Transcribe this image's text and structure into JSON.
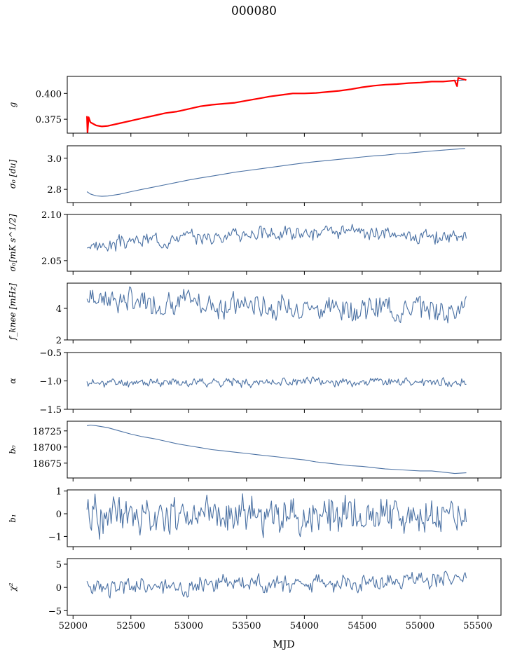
{
  "figure": {
    "title": "000080",
    "xlabel": "MJD"
  },
  "colors": {
    "series": "#4c72a4",
    "fit": "#ff0000",
    "axis": "#000000",
    "background": "#ffffff"
  },
  "chart_data": [
    {
      "type": "line",
      "ylabel": "g",
      "xlim": [
        51950,
        55700
      ],
      "ylim": [
        0.3615,
        0.4165
      ],
      "yticks": [
        0.375,
        0.4
      ],
      "ytick_labels": [
        "0.375",
        "0.400"
      ],
      "series": [
        {
          "x": [
            52120,
            52150,
            52200,
            52250,
            52300,
            52400,
            52500,
            52600,
            52700,
            52800,
            52900,
            53000,
            53100,
            53200,
            53300,
            53400,
            53500,
            53600,
            53700,
            53800,
            53900,
            54000,
            54100,
            54200,
            54300,
            54400,
            54500,
            54600,
            54700,
            54800,
            54900,
            55000,
            55100,
            55200,
            55300,
            55380
          ],
          "y": [
            0.376,
            0.372,
            0.369,
            0.368,
            0.3685,
            0.371,
            0.3735,
            0.376,
            0.3785,
            0.381,
            0.3825,
            0.385,
            0.3875,
            0.389,
            0.39,
            0.391,
            0.393,
            0.395,
            0.397,
            0.3985,
            0.4,
            0.4,
            0.4005,
            0.4015,
            0.4025,
            0.404,
            0.406,
            0.4075,
            0.4085,
            0.409,
            0.41,
            0.4105,
            0.4115,
            0.4115,
            0.4125,
            0.413
          ]
        },
        {
          "x": [
            52120,
            52125,
            52135,
            52150,
            52200,
            52250,
            52300,
            52400,
            52500,
            52600,
            52700,
            52800,
            52900,
            53000,
            53100,
            53200,
            53300,
            53400,
            53500,
            53600,
            53700,
            53800,
            53900,
            54000,
            54100,
            54200,
            54300,
            54400,
            54500,
            54600,
            54700,
            54800,
            54900,
            55000,
            55100,
            55200,
            55300,
            55320,
            55330,
            55400
          ],
          "y": [
            0.378,
            0.362,
            0.377,
            0.372,
            0.369,
            0.368,
            0.3685,
            0.371,
            0.3735,
            0.376,
            0.3785,
            0.381,
            0.3825,
            0.385,
            0.3875,
            0.389,
            0.39,
            0.391,
            0.393,
            0.395,
            0.397,
            0.3985,
            0.4,
            0.4,
            0.4005,
            0.4015,
            0.4025,
            0.404,
            0.406,
            0.4075,
            0.4085,
            0.409,
            0.41,
            0.4105,
            0.4115,
            0.4115,
            0.4125,
            0.407,
            0.415,
            0.413
          ]
        }
      ]
    },
    {
      "type": "line",
      "ylabel": "σ₀ [du]",
      "xlim": [
        51950,
        55700
      ],
      "ylim": [
        2.715,
        3.08
      ],
      "yticks": [
        2.8,
        3.0
      ],
      "ytick_labels": [
        "2.8",
        "3.0"
      ],
      "series": [
        {
          "x": [
            52120,
            52150,
            52200,
            52250,
            52300,
            52400,
            52500,
            52600,
            52700,
            52800,
            52900,
            53000,
            53100,
            53200,
            53300,
            53400,
            53500,
            53600,
            53700,
            53800,
            53900,
            54000,
            54100,
            54200,
            54300,
            54400,
            54500,
            54600,
            54700,
            54800,
            54900,
            55000,
            55100,
            55200,
            55300,
            55390
          ],
          "y": [
            2.785,
            2.77,
            2.758,
            2.755,
            2.757,
            2.768,
            2.785,
            2.8,
            2.815,
            2.83,
            2.845,
            2.86,
            2.873,
            2.885,
            2.897,
            2.91,
            2.92,
            2.93,
            2.94,
            2.95,
            2.96,
            2.97,
            2.978,
            2.985,
            2.993,
            3.0,
            3.008,
            3.015,
            3.02,
            3.028,
            3.033,
            3.04,
            3.046,
            3.052,
            3.058,
            3.063
          ]
        }
      ]
    },
    {
      "type": "line",
      "ylabel": "σ₀[mK s^1/2]",
      "xlim": [
        51950,
        55700
      ],
      "ylim": [
        2.0385,
        2.1
      ],
      "yticks": [
        2.05,
        2.1
      ],
      "ytick_labels": [
        "2.05",
        "2.10"
      ],
      "series": [
        {
          "x_range": [
            52120,
            55400
          ],
          "base": [
            2.064,
            2.072,
            2.076,
            2.079,
            2.08,
            2.08,
            2.078,
            2.074
          ],
          "amp": 0.0035,
          "count": 330,
          "seed": 3
        }
      ]
    },
    {
      "type": "line",
      "ylabel": "f_knee [mHz]",
      "xlim": [
        51950,
        55700
      ],
      "ylim": [
        2.0,
        5.6
      ],
      "yticks": [
        2,
        4
      ],
      "ytick_labels": [
        "2",
        "4"
      ],
      "series": [
        {
          "x_range": [
            52120,
            55400
          ],
          "base": [
            4.8,
            4.4,
            4.3,
            4.2,
            4.1,
            4.0,
            4.0,
            3.95
          ],
          "amp": 0.35,
          "count": 330,
          "seed": 7
        }
      ]
    },
    {
      "type": "line",
      "ylabel": "α",
      "xlim": [
        51950,
        55700
      ],
      "ylim": [
        -1.5,
        -0.5
      ],
      "yticks": [
        -1.5,
        -1.0,
        -0.5
      ],
      "ytick_labels": [
        "−1.5",
        "−1.0",
        "−0.5"
      ],
      "series": [
        {
          "x_range": [
            52120,
            55400
          ],
          "base": [
            -1.04,
            -1.03,
            -1.02,
            -1.02,
            -1.02,
            -1.02,
            -1.02,
            -1.02
          ],
          "amp": 0.035,
          "count": 330,
          "seed": 11
        }
      ]
    },
    {
      "type": "line",
      "ylabel": "b₀",
      "xlim": [
        51950,
        55700
      ],
      "ylim": [
        18652,
        18740
      ],
      "yticks": [
        18675,
        18700,
        18725
      ],
      "ytick_labels": [
        "18675",
        "18700",
        "18725"
      ],
      "series": [
        {
          "x": [
            52120,
            52150,
            52200,
            52300,
            52400,
            52500,
            52600,
            52700,
            52800,
            52900,
            53000,
            53100,
            53200,
            53300,
            53400,
            53500,
            53600,
            53700,
            53800,
            53900,
            54000,
            54100,
            54200,
            54300,
            54400,
            54500,
            54600,
            54700,
            54800,
            54900,
            55000,
            55100,
            55200,
            55300,
            55400
          ],
          "y": [
            18733,
            18734,
            18733,
            18730,
            18725,
            18720,
            18716,
            18713,
            18709,
            18705,
            18702,
            18699,
            18696,
            18694,
            18692,
            18690,
            18688,
            18686,
            18684,
            18682,
            18680,
            18677,
            18675,
            18673,
            18671,
            18670,
            18668,
            18666,
            18665,
            18664,
            18663,
            18663,
            18661,
            18659,
            18660
          ]
        }
      ]
    },
    {
      "type": "line",
      "ylabel": "b₁",
      "xlim": [
        51950,
        55700
      ],
      "ylim": [
        -1.45,
        1.05
      ],
      "yticks": [
        -1,
        0,
        1
      ],
      "ytick_labels": [
        "−1",
        "0",
        "1"
      ],
      "series": [
        {
          "x_range": [
            52120,
            55400
          ],
          "base": [
            -0.05,
            -0.05,
            -0.05,
            -0.05,
            -0.05,
            -0.05,
            -0.05,
            -0.05
          ],
          "amp": 0.38,
          "count": 330,
          "seed": 19
        }
      ]
    },
    {
      "type": "line",
      "ylabel": "χ²",
      "xlim": [
        51950,
        55700
      ],
      "ylim": [
        -6.0,
        6.2
      ],
      "yticks": [
        -5,
        0,
        5
      ],
      "ytick_labels": [
        "−5",
        "0",
        "5"
      ],
      "xticks": [
        52000,
        52500,
        53000,
        53500,
        54000,
        54500,
        55000,
        55500
      ],
      "xtick_labels": [
        "52000",
        "52500",
        "53000",
        "53500",
        "54000",
        "54500",
        "55000",
        "55500"
      ],
      "series": [
        {
          "x_range": [
            52120,
            55400
          ],
          "base": [
            -0.5,
            0.2,
            0.6,
            0.9,
            1.0,
            1.2,
            1.6,
            2.0
          ],
          "amp": 0.9,
          "count": 330,
          "seed": 23
        }
      ]
    }
  ]
}
